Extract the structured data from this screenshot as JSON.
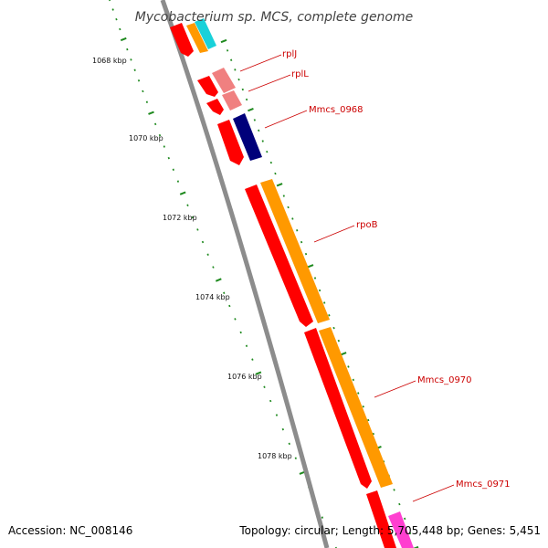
{
  "title": "Mycobacterium sp. MCS, complete genome",
  "colors": {
    "background": "#ffffff",
    "backbone": "#8c8c8c",
    "tick": "#1f8a1f",
    "label_text": "#cc0000",
    "gene_red": "#ff0000",
    "gene_light_red": "#f08080",
    "gene_navy": "#00007a",
    "gene_orange": "#ff9900",
    "gene_cyan": "#19d1d9",
    "gene_magenta": "#ff3fd0"
  },
  "scale": {
    "unit": "kbp",
    "ticks": [
      {
        "label": "1068 kbp"
      },
      {
        "label": "1070 kbp"
      },
      {
        "label": "1072 kbp"
      },
      {
        "label": "1074 kbp"
      },
      {
        "label": "1076 kbp"
      },
      {
        "label": "1078 kbp"
      }
    ]
  },
  "features": [
    {
      "name": "rplJ"
    },
    {
      "name": "rplL"
    },
    {
      "name": "Mmcs_0968"
    },
    {
      "name": "rpoB"
    },
    {
      "name": "Mmcs_0970"
    },
    {
      "name": "Mmcs_0971"
    }
  ],
  "footer": {
    "accession": "Accession: NC_008146",
    "summary": "Topology: circular; Length: 5,705,448 bp; Genes: 5,451"
  }
}
